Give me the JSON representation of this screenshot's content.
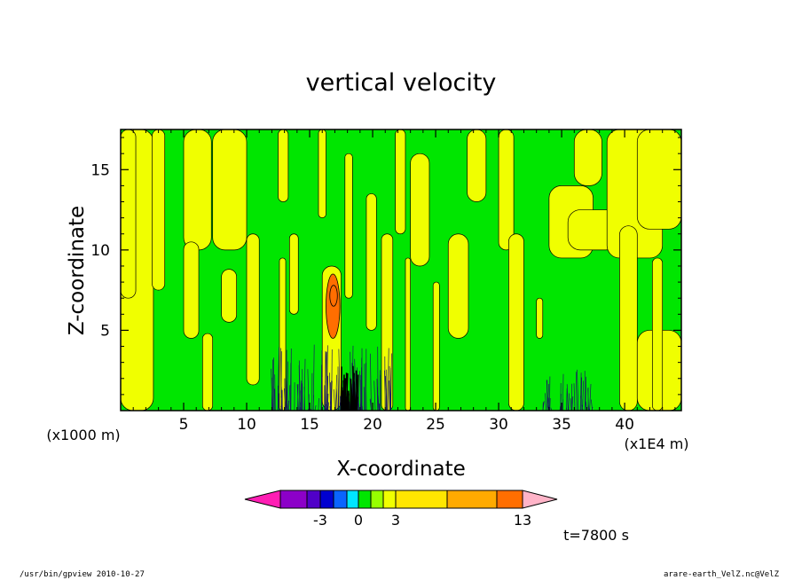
{
  "chart_data": {
    "type": "heatmap",
    "title": "vertical velocity",
    "xlabel": "X-coordinate",
    "ylabel": "Z-coordinate",
    "x_unit_left": "(x1000 m)",
    "x_unit_right": "(x1E4 m)",
    "xlim": [
      0,
      44.5
    ],
    "ylim": [
      0,
      17.5
    ],
    "x_ticks": [
      "5",
      "10",
      "15",
      "20",
      "25",
      "30",
      "35",
      "40"
    ],
    "x_tick_values": [
      5,
      10,
      15,
      20,
      25,
      30,
      35,
      40
    ],
    "y_ticks": [
      "5",
      "10",
      "15"
    ],
    "y_tick_values": [
      5,
      10,
      15
    ],
    "grid": false,
    "background_color": "#00e600",
    "positive_color": "#f0ff00",
    "bands": [
      {
        "x0": 0.0,
        "x1": 2.6,
        "z0": 0,
        "z1": 17.5
      },
      {
        "x0": 0.0,
        "x1": 1.2,
        "z0": 7.0,
        "z1": 17.5
      },
      {
        "x0": 2.5,
        "x1": 3.5,
        "z0": 7.5,
        "z1": 17.5
      },
      {
        "x0": 5.0,
        "x1": 7.2,
        "z0": 10.0,
        "z1": 17.5
      },
      {
        "x0": 5.0,
        "x1": 6.2,
        "z0": 4.5,
        "z1": 10.5
      },
      {
        "x0": 6.5,
        "x1": 7.3,
        "z0": 0,
        "z1": 4.8
      },
      {
        "x0": 7.3,
        "x1": 10.0,
        "z0": 10.0,
        "z1": 17.5
      },
      {
        "x0": 10.0,
        "x1": 11.0,
        "z0": 1.6,
        "z1": 11.0
      },
      {
        "x0": 8.0,
        "x1": 9.2,
        "z0": 5.5,
        "z1": 8.8
      },
      {
        "x0": 12.5,
        "x1": 13.3,
        "z0": 13.0,
        "z1": 17.5
      },
      {
        "x0": 12.6,
        "x1": 13.1,
        "z0": 0,
        "z1": 9.5
      },
      {
        "x0": 13.4,
        "x1": 14.1,
        "z0": 6.0,
        "z1": 11.0
      },
      {
        "x0": 15.7,
        "x1": 16.3,
        "z0": 12.0,
        "z1": 17.5
      },
      {
        "x0": 16.0,
        "x1": 17.5,
        "z0": 0,
        "z1": 9.0
      },
      {
        "x0": 17.8,
        "x1": 18.4,
        "z0": 7.0,
        "z1": 16.0
      },
      {
        "x0": 19.5,
        "x1": 20.3,
        "z0": 5.0,
        "z1": 13.5
      },
      {
        "x0": 20.7,
        "x1": 21.6,
        "z0": 0,
        "z1": 11.0
      },
      {
        "x0": 21.8,
        "x1": 22.6,
        "z0": 11.0,
        "z1": 17.5
      },
      {
        "x0": 22.6,
        "x1": 23.0,
        "z0": 0,
        "z1": 9.5
      },
      {
        "x0": 23.0,
        "x1": 24.5,
        "z0": 9.0,
        "z1": 16.0
      },
      {
        "x0": 26.0,
        "x1": 27.6,
        "z0": 4.5,
        "z1": 11.0
      },
      {
        "x0": 24.8,
        "x1": 25.3,
        "z0": 0,
        "z1": 8.0
      },
      {
        "x0": 27.5,
        "x1": 29.0,
        "z0": 13.0,
        "z1": 17.5
      },
      {
        "x0": 30.0,
        "x1": 31.2,
        "z0": 10.0,
        "z1": 17.5
      },
      {
        "x0": 30.8,
        "x1": 32.0,
        "z0": 0,
        "z1": 11.0
      },
      {
        "x0": 33.0,
        "x1": 33.5,
        "z0": 4.5,
        "z1": 7.0
      },
      {
        "x0": 34.0,
        "x1": 37.5,
        "z0": 9.5,
        "z1": 14.0
      },
      {
        "x0": 36.0,
        "x1": 38.2,
        "z0": 14.0,
        "z1": 17.5
      },
      {
        "x0": 35.5,
        "x1": 39.5,
        "z0": 10.0,
        "z1": 12.5
      },
      {
        "x0": 38.6,
        "x1": 43.0,
        "z0": 9.5,
        "z1": 17.5
      },
      {
        "x0": 41.0,
        "x1": 44.5,
        "z0": 11.3,
        "z1": 17.5
      },
      {
        "x0": 39.6,
        "x1": 41.0,
        "z0": 0,
        "z1": 11.5
      },
      {
        "x0": 41.0,
        "x1": 44.5,
        "z0": 0,
        "z1": 5.0
      },
      {
        "x0": 42.2,
        "x1": 43.0,
        "z0": 0,
        "z1": 9.5
      }
    ],
    "updraft": [
      {
        "level": 3,
        "color": "#ff6e00",
        "x0": 16.3,
        "x1": 17.4,
        "z0": 4.5,
        "z1": 8.5
      },
      {
        "level": 6,
        "color": "#ff6e00",
        "x0": 16.6,
        "x1": 17.2,
        "z0": 6.5,
        "z1": 7.8
      }
    ],
    "colorbar": {
      "levels": [
        "-3",
        "0",
        "3",
        "13"
      ],
      "colors": [
        "#ff1eb4",
        "#8c00c8",
        "#5000c8",
        "#0000d0",
        "#0a64ff",
        "#00e6ff",
        "#00e600",
        "#96ff00",
        "#f0ff00",
        "#ffe600",
        "#ffaa00",
        "#ff6e00",
        "#ff1414",
        "#ff8282",
        "#ffb4c8"
      ]
    },
    "time_label": "t=7800 s"
  },
  "footer": {
    "left": "/usr/bin/gpview   2010-10-27",
    "right": "arare-earth_VelZ.nc@VelZ"
  }
}
